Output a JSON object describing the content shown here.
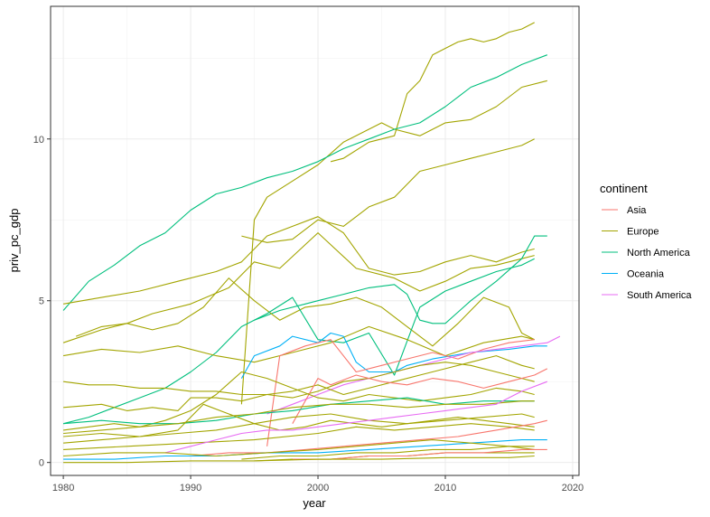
{
  "chart_data": {
    "type": "line",
    "title": "",
    "xlabel": "year",
    "ylabel": "priv_pc_gdp",
    "xlim": [
      1979,
      2020.5
    ],
    "ylim": [
      -0.4,
      14.1
    ],
    "x_ticks": [
      1980,
      1990,
      2000,
      2010,
      2020
    ],
    "y_ticks": [
      0,
      5,
      10
    ],
    "grid": true,
    "legend": {
      "title": "continent",
      "placement": "right",
      "entries": [
        {
          "name": "Asia",
          "color": "#F8766D"
        },
        {
          "name": "Europe",
          "color": "#A3A500"
        },
        {
          "name": "North America",
          "color": "#00BF7D"
        },
        {
          "name": "Oceania",
          "color": "#00B0F6"
        },
        {
          "name": "South America",
          "color": "#E76BF3"
        }
      ]
    },
    "series": [
      {
        "continent": "Europe",
        "x": [
          2001,
          2002,
          2004,
          2006,
          2007,
          2008,
          2009,
          2010,
          2011,
          2012,
          2013,
          2014,
          2015,
          2016,
          2017
        ],
        "y": [
          9.3,
          9.4,
          9.9,
          10.1,
          11.4,
          11.8,
          12.6,
          12.8,
          13.0,
          13.1,
          13.0,
          13.1,
          13.3,
          13.4,
          13.6
        ]
      },
      {
        "continent": "Europe",
        "x": [
          1994,
          1995,
          1996,
          1998,
          2000,
          2002,
          2004,
          2005,
          2006,
          2008,
          2010,
          2012,
          2014,
          2016,
          2018
        ],
        "y": [
          1.8,
          7.5,
          8.2,
          8.7,
          9.2,
          9.9,
          10.3,
          10.5,
          10.3,
          10.1,
          10.5,
          10.6,
          11.0,
          11.6,
          11.8
        ]
      },
      {
        "continent": "North America",
        "x": [
          1980,
          1982,
          1984,
          1986,
          1988,
          1990,
          1992,
          1994,
          1996,
          1998,
          2000,
          2002,
          2004,
          2006,
          2008,
          2010,
          2012,
          2014,
          2016,
          2018
        ],
        "y": [
          4.7,
          5.6,
          6.1,
          6.7,
          7.1,
          7.8,
          8.3,
          8.5,
          8.8,
          9.0,
          9.3,
          9.7,
          10.0,
          10.3,
          10.5,
          11.0,
          11.6,
          11.9,
          12.3,
          12.6
        ]
      },
      {
        "continent": "Europe",
        "x": [
          1994,
          1996,
          1998,
          2000,
          2002,
          2004,
          2006,
          2008,
          2010,
          2012,
          2014,
          2016,
          2017
        ],
        "y": [
          7.0,
          6.8,
          6.9,
          7.5,
          7.3,
          7.9,
          8.2,
          9.0,
          9.2,
          9.4,
          9.6,
          9.8,
          10.0
        ]
      },
      {
        "continent": "Europe",
        "x": [
          1980,
          1983,
          1986,
          1989,
          1992,
          1994,
          1996,
          1998,
          2000,
          2002,
          2004,
          2006,
          2008,
          2010,
          2012,
          2014,
          2016,
          2017
        ],
        "y": [
          4.9,
          5.1,
          5.3,
          5.6,
          5.9,
          6.2,
          7.0,
          7.3,
          7.6,
          7.1,
          6.0,
          5.8,
          5.9,
          6.2,
          6.4,
          6.2,
          6.5,
          6.6
        ]
      },
      {
        "continent": "Europe",
        "x": [
          1980,
          1983,
          1985,
          1987,
          1990,
          1993,
          1995,
          1997,
          2000,
          2003,
          2006,
          2008,
          2010,
          2012,
          2014,
          2016,
          2017
        ],
        "y": [
          3.7,
          4.1,
          4.3,
          4.6,
          4.9,
          5.4,
          6.2,
          6.0,
          7.1,
          6.0,
          5.7,
          5.3,
          5.6,
          6.0,
          6.1,
          6.3,
          6.4
        ]
      },
      {
        "continent": "North America",
        "x": [
          1995,
          1997,
          1999,
          2000,
          2002,
          2004,
          2006,
          2007,
          2008,
          2009,
          2010,
          2012,
          2014,
          2016,
          2017,
          2018
        ],
        "y": [
          4.4,
          4.7,
          4.9,
          5.0,
          5.2,
          5.4,
          5.5,
          5.2,
          4.4,
          4.3,
          4.3,
          5.0,
          5.6,
          6.3,
          7.0,
          7.0
        ]
      },
      {
        "continent": "Europe",
        "x": [
          1981,
          1983,
          1985,
          1987,
          1989,
          1991,
          1993,
          1995,
          1997,
          1999,
          2001,
          2003,
          2005,
          2007,
          2009,
          2011,
          2013,
          2015,
          2016,
          2017
        ],
        "y": [
          3.9,
          4.2,
          4.3,
          4.1,
          4.3,
          4.8,
          5.7,
          5.0,
          4.4,
          4.8,
          4.9,
          5.1,
          4.8,
          4.2,
          3.6,
          4.3,
          5.1,
          4.8,
          4.0,
          3.8
        ]
      },
      {
        "continent": "North America",
        "x": [
          1980,
          1982,
          1984,
          1986,
          1988,
          1990,
          1992,
          1994,
          1996,
          1998,
          2000,
          2002,
          2004,
          2006,
          2008,
          2010,
          2012,
          2014,
          2016,
          2017
        ],
        "y": [
          1.2,
          1.4,
          1.7,
          2.0,
          2.3,
          2.8,
          3.4,
          4.2,
          4.6,
          5.1,
          3.8,
          3.7,
          4.0,
          2.7,
          4.8,
          5.3,
          5.6,
          5.9,
          6.1,
          6.3
        ]
      },
      {
        "continent": "Europe",
        "x": [
          1980,
          1983,
          1986,
          1989,
          1992,
          1995,
          1998,
          2001,
          2004,
          2007,
          2010,
          2013,
          2016,
          2017
        ],
        "y": [
          3.3,
          3.5,
          3.4,
          3.6,
          3.3,
          3.1,
          3.4,
          3.7,
          4.2,
          3.8,
          3.3,
          3.7,
          3.9,
          3.8
        ]
      },
      {
        "continent": "Oceania",
        "x": [
          1994,
          1995,
          1997,
          1998,
          2000,
          2001,
          2002,
          2003,
          2004,
          2005,
          2006,
          2007,
          2009,
          2012,
          2015,
          2017,
          2018
        ],
        "y": [
          2.6,
          3.3,
          3.6,
          3.9,
          3.7,
          4.0,
          3.9,
          3.1,
          2.8,
          2.8,
          2.8,
          3.0,
          3.2,
          3.4,
          3.5,
          3.6,
          3.6
        ]
      },
      {
        "continent": "Asia",
        "x": [
          1996,
          1997,
          1999,
          2001,
          2003,
          2005,
          2007,
          2009,
          2011,
          2013,
          2015,
          2017
        ],
        "y": [
          0.5,
          3.3,
          3.6,
          3.8,
          2.8,
          3.0,
          3.2,
          3.4,
          3.2,
          3.5,
          3.7,
          3.8
        ]
      },
      {
        "continent": "South America",
        "x": [
          1996,
          1998,
          2000,
          2002,
          2004,
          2006,
          2008,
          2010,
          2012,
          2014,
          2016,
          2018,
          2019
        ],
        "y": [
          1.5,
          1.8,
          2.1,
          2.4,
          2.6,
          2.8,
          3.0,
          3.2,
          3.4,
          3.5,
          3.6,
          3.7,
          3.9
        ]
      },
      {
        "continent": "Europe",
        "x": [
          1980,
          1982,
          1984,
          1986,
          1988,
          1990,
          1992,
          1994,
          1996,
          1998,
          2000,
          2002,
          2004,
          2006,
          2008,
          2010,
          2012,
          2014,
          2016,
          2017
        ],
        "y": [
          2.5,
          2.4,
          2.4,
          2.3,
          2.3,
          2.2,
          2.2,
          2.1,
          2.1,
          2.0,
          2.2,
          2.5,
          2.6,
          2.8,
          3.0,
          3.1,
          3.0,
          2.8,
          2.6,
          2.5
        ]
      },
      {
        "continent": "Europe",
        "x": [
          1980,
          1983,
          1985,
          1987,
          1989,
          1990,
          1992,
          1994,
          1996,
          1998,
          2000,
          2002,
          2004,
          2006,
          2008,
          2010,
          2012,
          2014,
          2016,
          2017
        ],
        "y": [
          1.7,
          1.8,
          1.6,
          1.7,
          1.6,
          2.0,
          2.0,
          1.9,
          2.1,
          2.2,
          2.4,
          2.1,
          2.3,
          2.5,
          2.7,
          2.9,
          3.1,
          3.3,
          3.0,
          2.9
        ]
      },
      {
        "continent": "Asia",
        "x": [
          1998,
          2000,
          2001,
          2003,
          2005,
          2007,
          2009,
          2011,
          2013,
          2015,
          2017,
          2018
        ],
        "y": [
          1.2,
          2.6,
          2.4,
          2.7,
          2.5,
          2.4,
          2.6,
          2.5,
          2.3,
          2.5,
          2.7,
          2.9
        ]
      },
      {
        "continent": "Europe",
        "x": [
          1980,
          1982,
          1984,
          1986,
          1988,
          1990,
          1992,
          1994,
          1996,
          1998,
          2000,
          2002,
          2004,
          2006,
          2008,
          2010,
          2012,
          2014,
          2016,
          2017
        ],
        "y": [
          1.0,
          1.1,
          1.2,
          1.1,
          1.3,
          1.6,
          2.1,
          2.8,
          2.6,
          2.3,
          2.0,
          1.9,
          2.1,
          2.0,
          1.9,
          2.0,
          2.1,
          2.3,
          2.2,
          2.1
        ]
      },
      {
        "continent": "North America",
        "x": [
          1980,
          1983,
          1986,
          1989,
          1992,
          1995,
          1998,
          2001,
          2004,
          2007,
          2010,
          2013,
          2016,
          2017
        ],
        "y": [
          1.2,
          1.3,
          1.2,
          1.2,
          1.3,
          1.5,
          1.6,
          1.8,
          1.9,
          2.0,
          1.8,
          1.9,
          1.9,
          1.9
        ]
      },
      {
        "continent": "Europe",
        "x": [
          1980,
          1983,
          1986,
          1989,
          1992,
          1995,
          1998,
          2001,
          2004,
          2007,
          2010,
          2013,
          2016,
          2017
        ],
        "y": [
          0.9,
          1.0,
          1.1,
          1.2,
          1.4,
          1.5,
          1.7,
          1.8,
          1.8,
          1.7,
          1.8,
          1.8,
          1.9,
          1.9
        ]
      },
      {
        "continent": "Europe",
        "x": [
          1980,
          1983,
          1986,
          1989,
          1992,
          1995,
          1998,
          2001,
          2004,
          2007,
          2010,
          2013,
          2016,
          2017
        ],
        "y": [
          0.8,
          0.9,
          0.8,
          0.9,
          1.0,
          1.2,
          1.4,
          1.5,
          1.3,
          1.2,
          1.3,
          1.4,
          1.5,
          1.4
        ]
      },
      {
        "continent": "Europe",
        "x": [
          1980,
          1983,
          1986,
          1989,
          1991,
          1993,
          1995,
          1997,
          1999,
          2001,
          2003,
          2005,
          2007,
          2009,
          2011,
          2013,
          2015,
          2017
        ],
        "y": [
          0.6,
          0.7,
          0.8,
          1.0,
          1.8,
          1.5,
          1.2,
          1.0,
          1.1,
          1.3,
          1.2,
          1.1,
          1.2,
          1.3,
          1.4,
          1.3,
          1.2,
          1.1
        ]
      },
      {
        "continent": "Europe",
        "x": [
          1980,
          1985,
          1990,
          1995,
          2000,
          2003,
          2006,
          2009,
          2012,
          2015,
          2017
        ],
        "y": [
          0.4,
          0.5,
          0.6,
          0.7,
          0.9,
          1.1,
          1.0,
          1.1,
          1.2,
          1.1,
          1.0
        ]
      },
      {
        "continent": "South America",
        "x": [
          1988,
          1990,
          1992,
          1994,
          1996,
          1998,
          2000,
          2002,
          2004,
          2006,
          2008,
          2010,
          2012,
          2014,
          2016,
          2018
        ],
        "y": [
          0.3,
          0.5,
          0.7,
          0.9,
          1.0,
          1.0,
          1.1,
          1.2,
          1.3,
          1.4,
          1.5,
          1.6,
          1.7,
          1.8,
          2.2,
          2.5
        ]
      },
      {
        "continent": "Asia",
        "x": [
          1990,
          1993,
          1996,
          1999,
          2002,
          2005,
          2008,
          2011,
          2014,
          2017,
          2018
        ],
        "y": [
          0.2,
          0.3,
          0.3,
          0.4,
          0.5,
          0.6,
          0.7,
          0.8,
          1.0,
          1.2,
          1.3
        ]
      },
      {
        "continent": "Oceania",
        "x": [
          1980,
          1984,
          1988,
          1992,
          1996,
          2000,
          2004,
          2008,
          2012,
          2016,
          2018
        ],
        "y": [
          0.1,
          0.1,
          0.2,
          0.2,
          0.3,
          0.3,
          0.4,
          0.5,
          0.6,
          0.7,
          0.7
        ]
      },
      {
        "continent": "Europe",
        "x": [
          1980,
          1984,
          1988,
          1992,
          1996,
          2000,
          2003,
          2006,
          2009,
          2012,
          2015,
          2017
        ],
        "y": [
          0.2,
          0.3,
          0.3,
          0.2,
          0.3,
          0.4,
          0.5,
          0.6,
          0.7,
          0.6,
          0.5,
          0.4
        ]
      },
      {
        "continent": "Europe",
        "x": [
          1994,
          1997,
          2000,
          2003,
          2006,
          2009,
          2012,
          2015,
          2017
        ],
        "y": [
          0.1,
          0.2,
          0.2,
          0.3,
          0.3,
          0.4,
          0.4,
          0.5,
          0.5
        ]
      },
      {
        "continent": "Europe",
        "x": [
          1995,
          1998,
          2001,
          2004,
          2007,
          2010,
          2013,
          2016,
          2017
        ],
        "y": [
          0.05,
          0.1,
          0.1,
          0.2,
          0.2,
          0.3,
          0.3,
          0.3,
          0.3
        ]
      },
      {
        "continent": "Asia",
        "x": [
          1998,
          2001,
          2004,
          2007,
          2010,
          2013,
          2016,
          2018
        ],
        "y": [
          0.1,
          0.1,
          0.2,
          0.2,
          0.3,
          0.3,
          0.4,
          0.4
        ]
      },
      {
        "continent": "Europe",
        "x": [
          1980,
          1985,
          1990,
          1995,
          2000,
          2005,
          2010,
          2015,
          2017
        ],
        "y": [
          0.0,
          0.0,
          0.05,
          0.05,
          0.1,
          0.1,
          0.15,
          0.15,
          0.2
        ]
      }
    ]
  }
}
